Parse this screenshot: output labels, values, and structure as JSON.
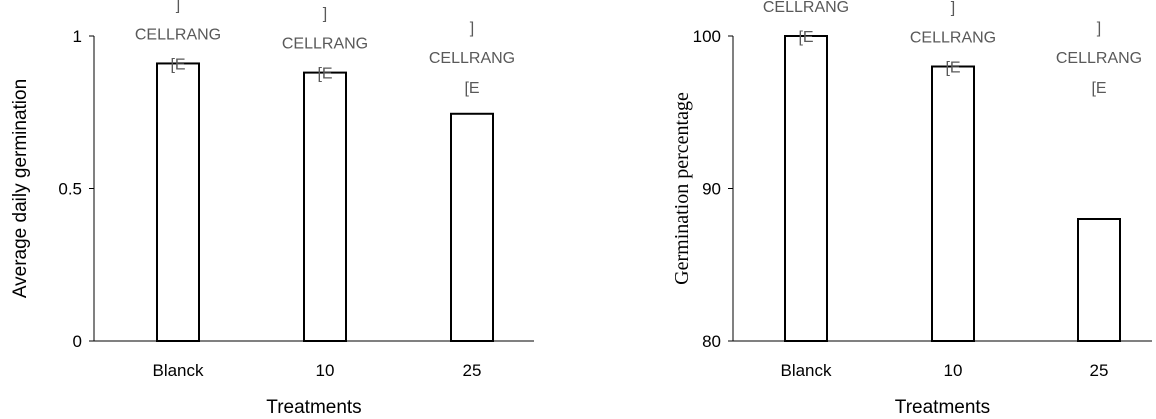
{
  "chart_data": [
    {
      "type": "bar",
      "categories": [
        "Blanck",
        "10",
        "25"
      ],
      "values": [
        0.91,
        0.88,
        0.745
      ],
      "xlabel": "Treatments",
      "ylabel": "Average daily germination",
      "ylim": [
        0,
        1
      ],
      "yticks": [
        "0",
        "0.5",
        "1"
      ],
      "data_labels": [
        [
          "]",
          "CELLRANG",
          "[E"
        ],
        [
          "]",
          "CELLRANG",
          "[E"
        ],
        [
          "]",
          "CELLRANG",
          "[E"
        ]
      ],
      "bar_fill": "#ffffff",
      "bar_stroke": "#000000",
      "grid": false
    },
    {
      "type": "bar",
      "categories": [
        "Blanck",
        "10",
        "25"
      ],
      "values": [
        100,
        98,
        88
      ],
      "xlabel": "Treatments",
      "ylabel": "Germination percentage",
      "ylim": [
        80,
        100
      ],
      "yticks": [
        "80",
        "90",
        "100"
      ],
      "data_labels": [
        [
          "]",
          "CELLRANG",
          "[E"
        ],
        [
          "]",
          "CELLRANG",
          "[E"
        ],
        [
          "]",
          "CELLRANG",
          "[E"
        ]
      ],
      "bar_fill": "#ffffff",
      "bar_stroke": "#000000",
      "grid": false
    }
  ]
}
